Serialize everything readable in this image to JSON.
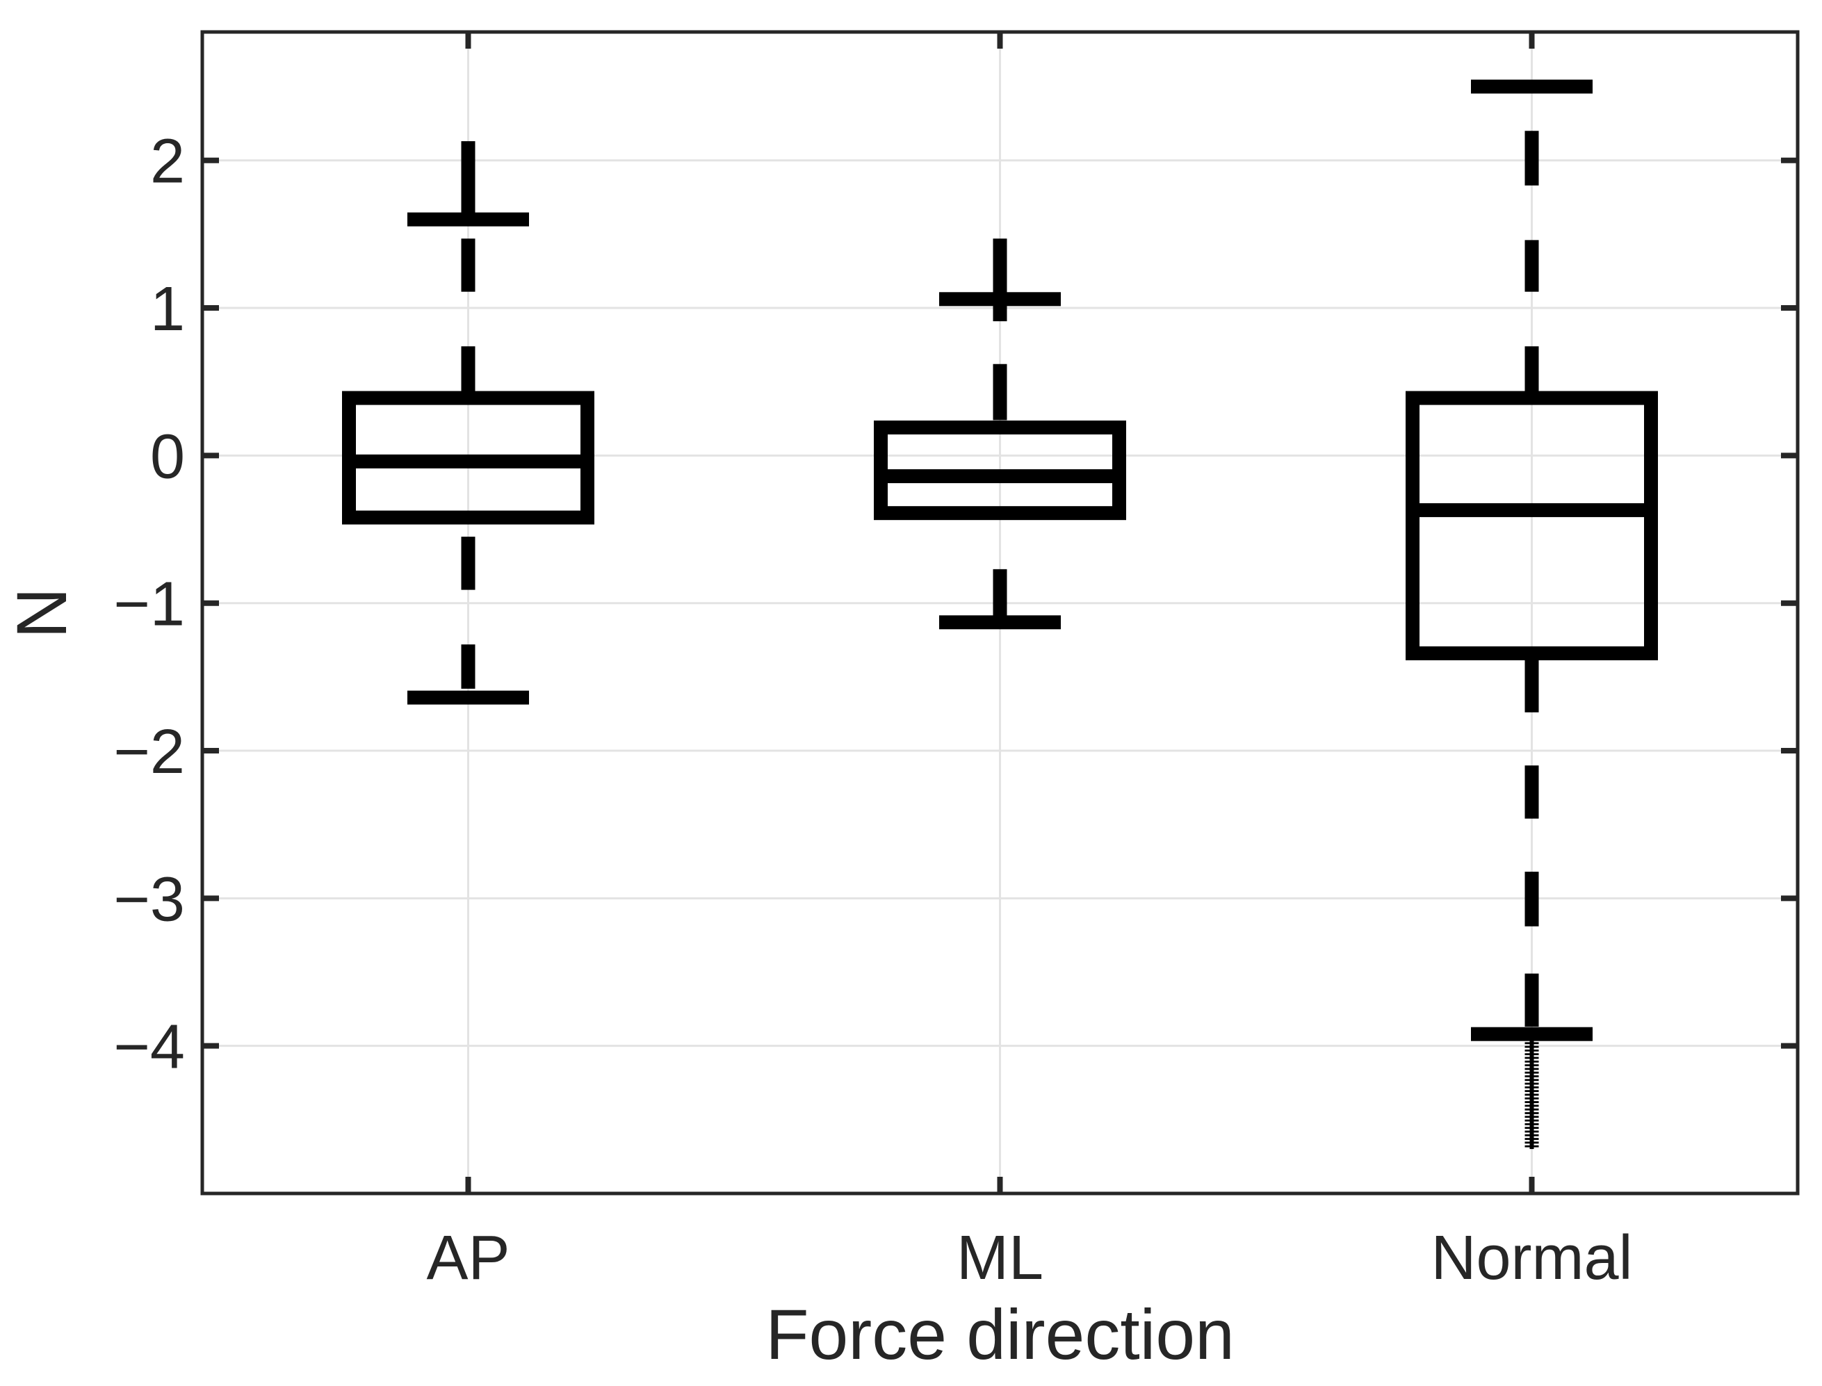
{
  "chart_data": {
    "type": "boxplot",
    "title": "",
    "xlabel": "Force direction",
    "ylabel": "N",
    "categories": [
      "AP",
      "ML",
      "Normal"
    ],
    "x_positions": [
      1,
      2,
      3
    ],
    "xlim": [
      0.5,
      3.5
    ],
    "ylim": [
      -5.0,
      2.87
    ],
    "y_ticks": [
      2,
      1,
      0,
      -1,
      -2,
      -3,
      -4
    ],
    "y_tick_labels": [
      "2",
      "1",
      "0",
      "−1",
      "−2",
      "−3",
      "−4"
    ],
    "grid": true,
    "legend": false,
    "colors": {
      "box": "#000000",
      "axes": "#262626",
      "gridline": "#e3e3e3",
      "text": "#262626",
      "background": "#ffffff"
    },
    "series": [
      {
        "name": "AP",
        "q1": -0.42,
        "median": -0.04,
        "q3": 0.39,
        "whisker_high": 1.6,
        "whisker_low": -1.64,
        "upper_dashes": [
          [
            1.11,
            1.47
          ],
          [
            0.43,
            0.74
          ]
        ],
        "lower_dashes": [
          [
            -0.91,
            -0.55
          ],
          [
            -1.58,
            -1.28
          ]
        ],
        "outlier_column_high": [
          1.56,
          2.13
        ],
        "outlier_ladder_low": null,
        "outliers_note": "dense cluster of + outliers from ~1.6 up to ~2.1"
      },
      {
        "name": "ML",
        "q1": -0.39,
        "median": -0.14,
        "q3": 0.19,
        "whisker_high": 1.06,
        "whisker_low": -1.13,
        "upper_dashes": [
          [
            0.24,
            0.62
          ]
        ],
        "lower_dashes": [
          [
            -1.09,
            -0.77
          ]
        ],
        "outlier_column_high": [
          0.91,
          1.47
        ],
        "outlier_ladder_low": null,
        "outliers_note": "dense cluster of + outliers from ~1.1 up to ~1.45"
      },
      {
        "name": "Normal",
        "q1": -1.34,
        "median": -0.37,
        "q3": 0.39,
        "whisker_high": 2.5,
        "whisker_low": -3.92,
        "upper_dashes": [
          [
            1.83,
            2.2
          ],
          [
            1.11,
            1.46
          ],
          [
            0.43,
            0.74
          ]
        ],
        "lower_dashes": [
          [
            -1.74,
            -1.38
          ],
          [
            -2.46,
            -2.1
          ],
          [
            -3.19,
            -2.82
          ],
          [
            -3.87,
            -3.51
          ]
        ],
        "outlier_column_high": null,
        "outlier_ladder_low": [
          -4.68,
          -3.95
        ],
        "outliers_note": "dense ladder of small + outliers from ~-3.95 down to ~-4.65"
      }
    ]
  }
}
